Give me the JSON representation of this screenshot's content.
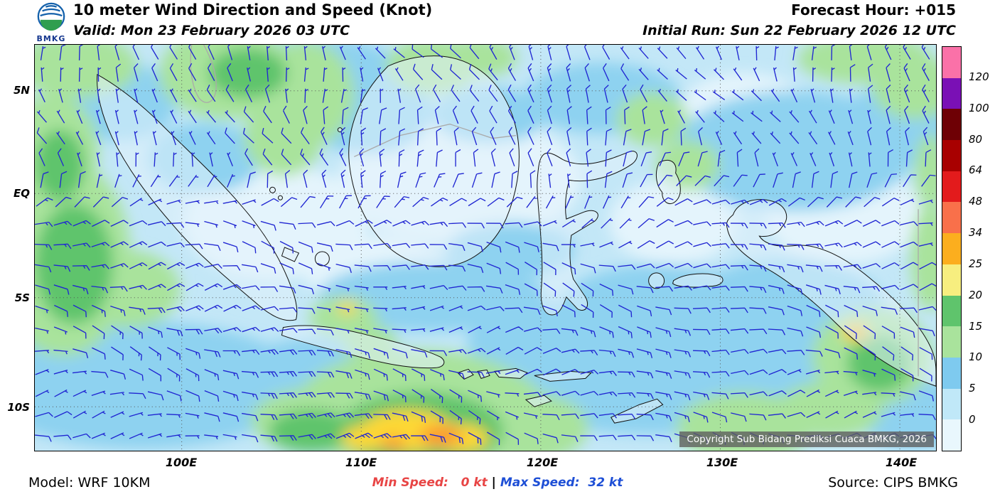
{
  "header": {
    "logo_text": "BMKG",
    "title": "10 meter Wind Direction and Speed (Knot)",
    "valid_line": "Valid: Mon 23 February 2026 03 UTC",
    "forecast_hour": "Forecast Hour: +015",
    "initial_run": "Initial Run: Sun 22 February 2026 12 UTC"
  },
  "map": {
    "lat_ticks": [
      "5N",
      "EQ",
      "5S",
      "10S"
    ],
    "lon_ticks": [
      "100E",
      "110E",
      "120E",
      "130E",
      "140E"
    ],
    "copyright": "Copyright Sub Bidang Prediksi Cuaca BMKG, 2026",
    "barb_color": "#2026d2",
    "palette": {
      "sea_base": "#c3e7f7",
      "pale": "#e4f4fc",
      "blue_5_10": "#8ed2f0",
      "green_10_15": "#a9e39c",
      "green_15_20": "#5fc46c",
      "yellow_20_25": "#fdd835",
      "orange_25_34": "#fb9a32",
      "land_fill": "#e3f2fb",
      "coast_stroke": "#111111",
      "neighbor_stroke": "#aaaaaa",
      "grid_stroke": "#555555"
    }
  },
  "colorbar": {
    "tick_labels": [
      "120",
      "100",
      "80",
      "64",
      "48",
      "34",
      "25",
      "20",
      "15",
      "10",
      "5",
      "0"
    ],
    "segment_colors_top_to_bottom": [
      "#fa71a8",
      "#7a10b5",
      "#6e0005",
      "#a80000",
      "#e31b1c",
      "#f9704a",
      "#fcae1e",
      "#f7ee7f",
      "#5fc46c",
      "#a9e39c",
      "#7ecaef",
      "#c0e8f8",
      "#e9f7fd"
    ]
  },
  "footer": {
    "model": "Model: WRF 10KM",
    "min_speed": "Min Speed:   0 kt",
    "min_color": "#e84545",
    "divider": " | ",
    "max_speed": "Max Speed:  32 kt",
    "max_color": "#1e4fd6",
    "source": "Source: CIPS BMKG"
  }
}
